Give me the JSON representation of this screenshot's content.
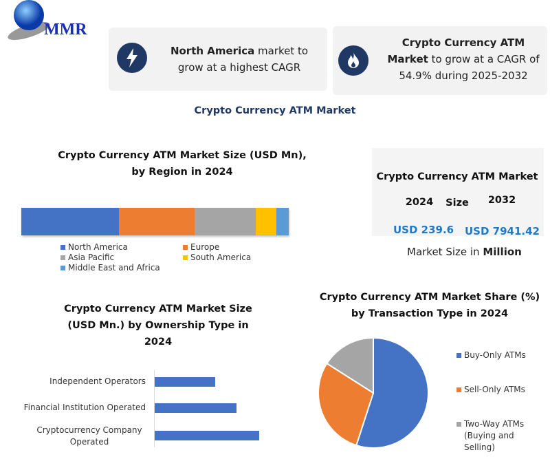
{
  "logo": {
    "text": "MMR"
  },
  "highlights": [
    {
      "icon": "lightning-icon",
      "bold": "North America",
      "text": " market to grow at a highest CAGR"
    },
    {
      "icon": "flame-icon",
      "bold": "Crypto Currency ATM Market",
      "text": " to grow at a CAGR of 54.9% during 2025-2032"
    }
  ],
  "main_title": "Crypto Currency ATM Market",
  "market_size": {
    "title": "Crypto Currency ATM Market Size",
    "year_a": "2024",
    "year_b": "2032",
    "value_a": "USD 239.6",
    "value_b": "USD 7941.42",
    "unit_prefix": "Market Size in ",
    "unit_bold": "Million"
  },
  "colors": {
    "blue": "#4472c4",
    "orange": "#ed7d31",
    "gray": "#a5a5a5",
    "yellow": "#ffc000",
    "lightblue": "#5b9bd5",
    "navy": "#1f3864"
  },
  "chart_data": [
    {
      "type": "bar",
      "orientation": "horizontal-stacked",
      "title": "Crypto Currency ATM Market Size (USD Mn), by Region in 2024",
      "legend_position": "bottom",
      "series": [
        {
          "name": "North America",
          "value": 36.5,
          "color": "#4472c4"
        },
        {
          "name": "Europe",
          "value": 28.3,
          "color": "#ed7d31"
        },
        {
          "name": "Asia Pacific",
          "value": 22.9,
          "color": "#a5a5a5"
        },
        {
          "name": "South America",
          "value": 7.7,
          "color": "#ffc000"
        },
        {
          "name": "Middle East and Africa",
          "value": 4.6,
          "color": "#5b9bd5"
        }
      ]
    },
    {
      "type": "bar",
      "orientation": "horizontal",
      "title": "Crypto Currency ATM Market Size (USD Mn.) by Ownership Type in 2024",
      "grid": false,
      "categories": [
        "Independent Operators",
        "Financial Institution Operated",
        "Cryptocurrency Company Operated"
      ],
      "values": [
        58,
        78,
        100
      ],
      "color": "#4472c4"
    },
    {
      "type": "pie",
      "title": "Crypto Currency ATM Market Share (%) by Transaction Type in 2024",
      "legend_position": "right",
      "categories": [
        "Buy-Only ATMs",
        "Sell-Only ATMs",
        "Two-Way ATMs (Buying and Selling)"
      ],
      "values": [
        55,
        29,
        16
      ],
      "colors": [
        "#4472c4",
        "#ed7d31",
        "#a5a5a5"
      ]
    }
  ]
}
